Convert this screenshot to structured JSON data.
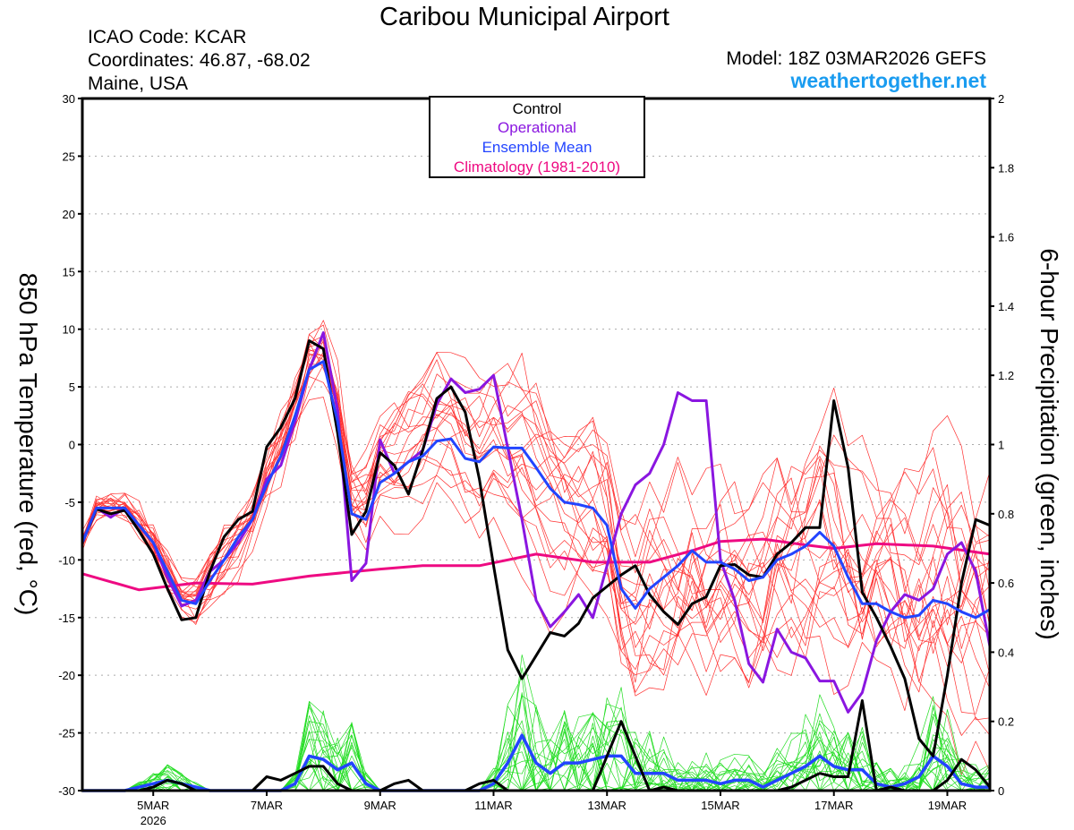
{
  "header": {
    "title": "Caribou Municipal Airport",
    "icao": "ICAO Code: KCAR",
    "coords": "Coordinates: 46.87, -68.02",
    "region": "Maine, USA",
    "model": "Model: 18Z 03MAR2026 GEFS",
    "site": "weathertogether.net"
  },
  "colors": {
    "control": "#000000",
    "operational": "#8a16e0",
    "mean": "#2244ff",
    "climatology": "#ee0a82",
    "members_temp": "#ff3030",
    "members_precip": "#22dd22",
    "site": "#1a9cf0"
  },
  "chart_data": {
    "type": "line",
    "title": "Caribou Municipal Airport",
    "ylabel": "850 hPa Temperature (red, °C)",
    "y2label": "6-hour Precipitation (green, inches)",
    "ylim": [
      -30,
      30
    ],
    "y2lim": [
      0,
      2
    ],
    "yticks": [
      "30",
      "25",
      "20",
      "15",
      "10",
      "5",
      "0",
      "-5",
      "-10",
      "-15",
      "-20",
      "-25",
      "-30"
    ],
    "y2ticks": [
      "2",
      "1.8",
      "1.6",
      "1.4",
      "1.2",
      "1",
      "0.8",
      "0.6",
      "0.4",
      "0.2",
      "0"
    ],
    "x_start": "18Z 03MAR2026",
    "x_step_hours": 6,
    "xticks": [
      {
        "label": "5MAR",
        "sub": "2026",
        "hour": 30
      },
      {
        "label": "7MAR",
        "sub": "",
        "hour": 78
      },
      {
        "label": "9MAR",
        "sub": "",
        "hour": 126
      },
      {
        "label": "11MAR",
        "sub": "",
        "hour": 174
      },
      {
        "label": "13MAR",
        "sub": "",
        "hour": 222
      },
      {
        "label": "15MAR",
        "sub": "",
        "hour": 270
      },
      {
        "label": "17MAR",
        "sub": "",
        "hour": 318
      },
      {
        "label": "19MAR",
        "sub": "",
        "hour": 366
      }
    ],
    "grid": true,
    "legend": {
      "placement": "top-center",
      "entries": [
        "Control",
        "Operational",
        "Ensemble Mean",
        "Climatology (1981-2010)"
      ]
    },
    "series": {
      "control_temp": [
        -8.5,
        -5.6,
        -6,
        -5.7,
        -7.5,
        -9.5,
        -12.5,
        -15.2,
        -15,
        -11,
        -8,
        -6.5,
        -5.8,
        -0.2,
        1.5,
        4,
        9,
        8.3,
        1,
        -7.8,
        -5.8,
        -0.7,
        -1.8,
        -4.3,
        -0.5,
        4,
        5,
        2.8,
        -3,
        -10.5,
        -17.8,
        -20.3,
        -18.3,
        -16.3,
        -16.6,
        -15.5,
        -13.3,
        -12.3,
        -11.3,
        -10.5,
        -13,
        -14.5,
        -15.6,
        -13.8,
        -13.2,
        -10.5,
        -10.4,
        -11.3,
        -11.5,
        -9.5,
        -8.5,
        -7.2,
        -7.2,
        3.8,
        -2,
        -12.8,
        -15,
        -17.5,
        -20.3,
        -25.5,
        -27,
        -20,
        -12,
        -6.5,
        -7
      ],
      "operational_temp": [
        -8.5,
        -5.5,
        -6.3,
        -5.5,
        -7,
        -8.5,
        -11.5,
        -14,
        -13.5,
        -11,
        -10,
        -8.5,
        -6.5,
        -3,
        -1.8,
        2,
        6.5,
        9.7,
        3,
        -11.8,
        -10.3,
        0.4,
        -2.5,
        -1.5,
        -0.5,
        3.5,
        5.7,
        4.5,
        4.8,
        6,
        -0.3,
        -6.5,
        -13.5,
        -15.8,
        -14.5,
        -13,
        -15,
        -10.5,
        -6,
        -3.5,
        -2.5,
        0,
        4.5,
        3.8,
        3.8,
        -10,
        -13.5,
        -19,
        -20.6,
        -16,
        -18,
        -18.5,
        -20.5,
        -20.5,
        -23.2,
        -21.5,
        -17,
        -14.5,
        -13,
        -13.5,
        -12.5,
        -9.5,
        -8.5,
        -11,
        -17.5
      ],
      "mean_temp": [
        -8.5,
        -5.5,
        -5.5,
        -5.5,
        -7,
        -8.5,
        -11,
        -13.5,
        -13.8,
        -11.8,
        -10,
        -8,
        -6.5,
        -3.5,
        -1,
        2.5,
        6.5,
        7.2,
        2,
        -6,
        -6.5,
        -3.3,
        -2.5,
        -1.5,
        -1,
        0.3,
        0.5,
        -1.2,
        -1.5,
        -0.2,
        -0.3,
        -0.3,
        -2,
        -3.8,
        -5,
        -5.2,
        -5.5,
        -7,
        -12.5,
        -14.2,
        -12.5,
        -11.5,
        -10.5,
        -9.2,
        -10.2,
        -10.2,
        -10.8,
        -11.8,
        -11.5,
        -10,
        -9.5,
        -8.8,
        -7.6,
        -8.8,
        -11.5,
        -13.8,
        -13.8,
        -14.5,
        -15,
        -14.8,
        -13.5,
        -13.8,
        -14.5,
        -15,
        -14.3
      ],
      "climatology_temp": [
        [
          0,
          -11.2
        ],
        [
          4,
          -12.6
        ],
        [
          8,
          -12
        ],
        [
          12,
          -12.1
        ],
        [
          16,
          -11.4
        ],
        [
          21,
          -10.8
        ],
        [
          24,
          -10.5
        ],
        [
          28,
          -10.5
        ],
        [
          32,
          -9.5
        ],
        [
          36,
          -10.2
        ],
        [
          40,
          -10.2
        ],
        [
          43,
          -9.2
        ],
        [
          45,
          -8.4
        ],
        [
          48,
          -8.2
        ],
        [
          51,
          -8.7
        ],
        [
          53,
          -9
        ],
        [
          56,
          -8.6
        ],
        [
          60,
          -8.8
        ],
        [
          64,
          -9.5
        ]
      ],
      "control_precip": [
        0,
        0,
        0,
        0,
        0,
        0.01,
        0.03,
        0.02,
        0,
        0,
        0,
        0,
        0,
        0.04,
        0.03,
        0.05,
        0.07,
        0.07,
        0.02,
        0,
        0,
        0,
        0.02,
        0.03,
        0,
        0,
        0,
        0,
        0.02,
        0.03,
        0,
        0,
        0,
        0,
        0,
        0,
        0,
        0.1,
        0.2,
        0.1,
        0,
        0.01,
        0,
        0,
        0,
        0,
        0,
        0,
        0,
        0,
        0.01,
        0.03,
        0.05,
        0.04,
        0.04,
        0.26,
        0,
        0.01,
        0,
        0,
        0,
        0.03,
        0.09,
        0.06,
        0.01
      ],
      "mean_precip": [
        0,
        0,
        0,
        0,
        0.01,
        0.02,
        0.03,
        0.02,
        0.01,
        0,
        0,
        0,
        0,
        0,
        0,
        0.02,
        0.1,
        0.09,
        0.06,
        0.08,
        0.02,
        0,
        0,
        0,
        0,
        0,
        0,
        0,
        0,
        0.02,
        0.08,
        0.16,
        0.08,
        0.05,
        0.08,
        0.08,
        0.09,
        0.1,
        0.1,
        0.05,
        0.05,
        0.05,
        0.03,
        0.03,
        0.03,
        0.02,
        0.03,
        0.03,
        0.01,
        0.03,
        0.05,
        0.07,
        0.1,
        0.07,
        0.06,
        0.06,
        0.02,
        0.01,
        0.02,
        0.04,
        0.1,
        0.07,
        0.02,
        0.01,
        0.01
      ]
    }
  }
}
